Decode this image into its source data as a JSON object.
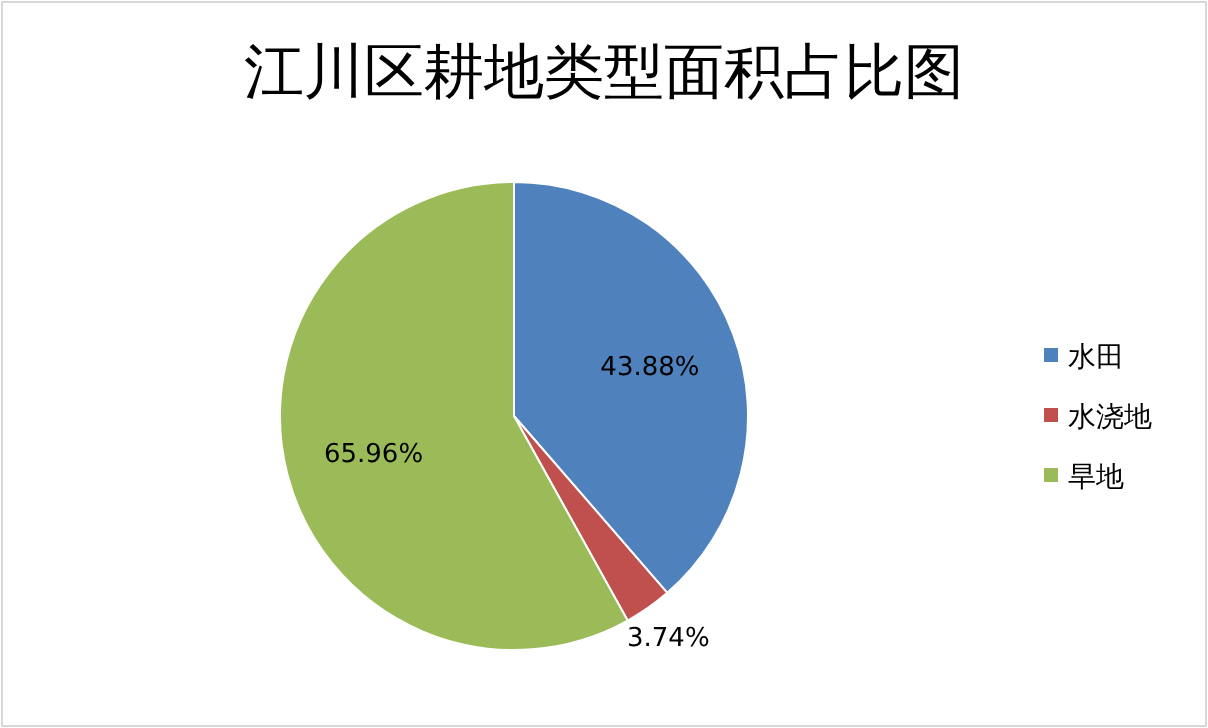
{
  "chart_data": {
    "type": "pie",
    "title": "江川区耕地类型面积占比图",
    "categories": [
      "水田",
      "水浇地",
      "旱地"
    ],
    "values": [
      43.88,
      3.74,
      65.96
    ],
    "colors": [
      "#4f81bd",
      "#c0504d",
      "#9bbb59"
    ],
    "value_labels": [
      "43.88%",
      "3.74%",
      "65.96%"
    ],
    "legend": "right"
  }
}
